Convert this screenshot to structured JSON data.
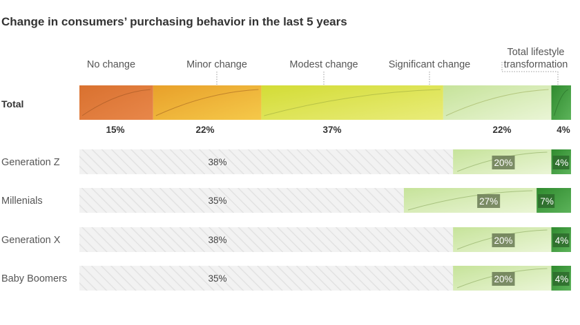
{
  "title": "Change in consumers’ purchasing behavior in the last 5 years",
  "chart_data": {
    "type": "bar",
    "orientation": "horizontal",
    "stacked": true,
    "unit": "%",
    "categories_header": [
      "No change",
      "Minor change",
      "Modest change",
      "Significant change",
      "Total lifestyle transformation"
    ],
    "header_lines": {
      "No change": [
        "No change"
      ],
      "Minor change": [
        "Minor change"
      ],
      "Modest change": [
        "Modest change"
      ],
      "Significant change": [
        "Significant change"
      ],
      "Total lifestyle transformation": [
        "Total lifestyle",
        "transformation"
      ]
    },
    "total": {
      "label": "Total",
      "values": [
        15,
        22,
        37,
        22,
        4
      ]
    },
    "rows": [
      {
        "label": "Generation Z",
        "rest": 38,
        "significant": 20,
        "transformation": 4
      },
      {
        "label": "Millenials",
        "rest": 35,
        "significant": 27,
        "transformation": 7
      },
      {
        "label": "Generation X",
        "rest": 38,
        "significant": 20,
        "transformation": 4
      },
      {
        "label": "Baby Boomers",
        "rest": 35,
        "significant": 20,
        "transformation": 4
      }
    ],
    "colors": {
      "no_change": "#e8874a",
      "minor_change": "#f0b435",
      "modest_change": "#dde44a",
      "significant_change": "#cfe8a8",
      "transformation": "#3f9a3c",
      "hatch_bg": "#f2f2f2",
      "hatch_line": "#e2e2e2",
      "value_box": "#6a7a55"
    }
  }
}
